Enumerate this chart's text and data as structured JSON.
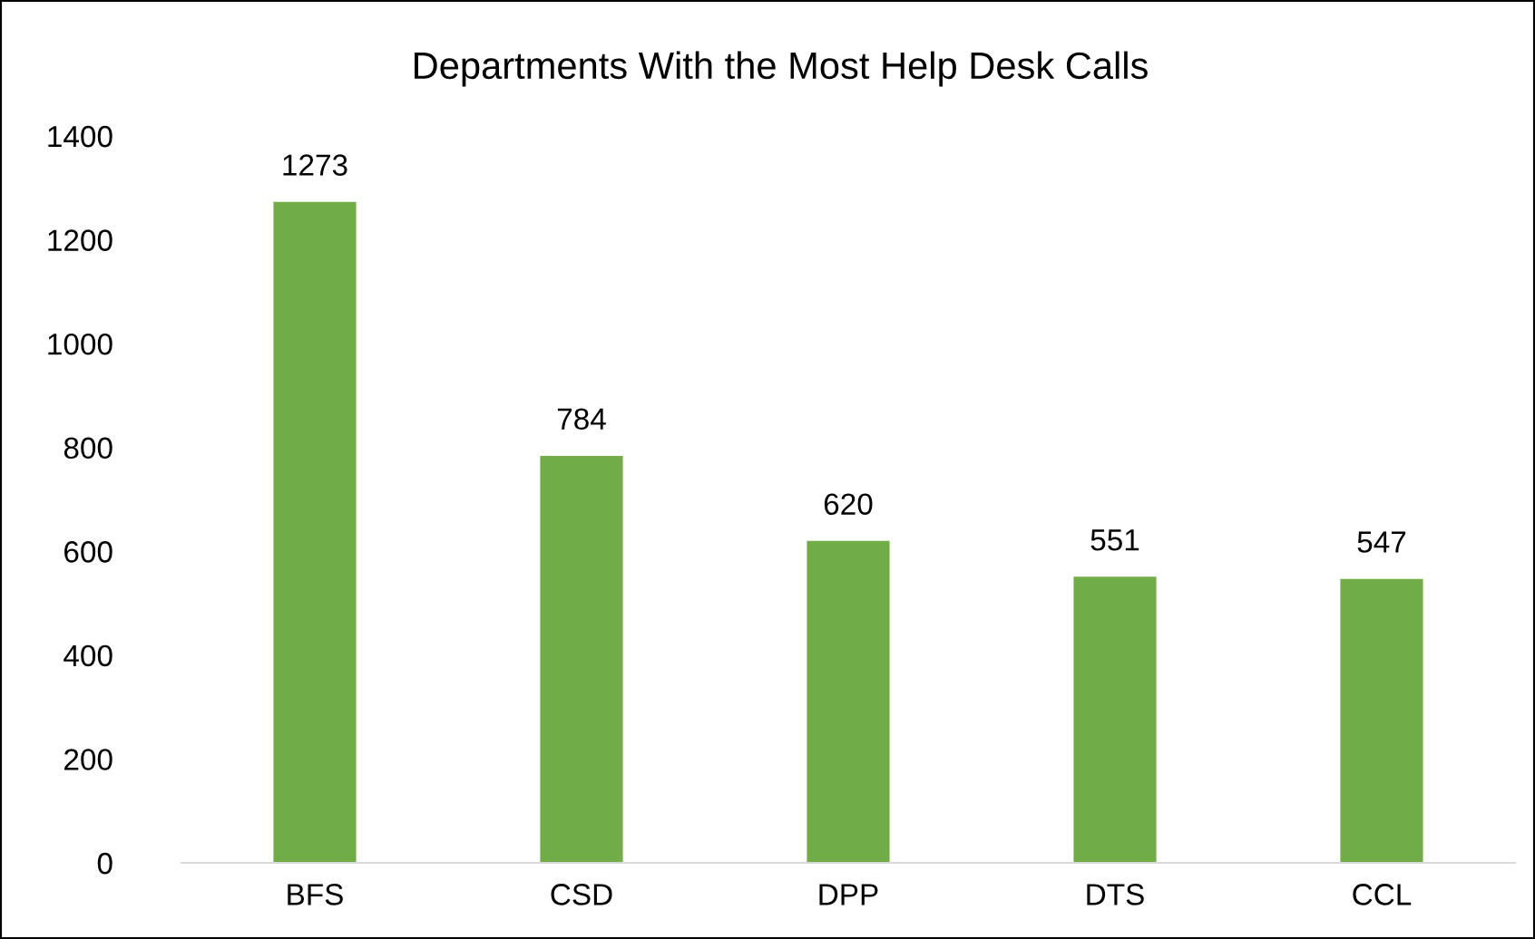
{
  "chart_data": {
    "type": "bar",
    "title": "Departments With the Most Help Desk Calls",
    "categories": [
      "BFS",
      "CSD",
      "DPP",
      "DTS",
      "CCL"
    ],
    "values": [
      1273,
      784,
      620,
      551,
      547
    ],
    "color": "#70ad47",
    "ylim": [
      0,
      1400
    ],
    "yticks": [
      0,
      200,
      400,
      600,
      800,
      1000,
      1200,
      1400
    ],
    "data_labels": true,
    "grid": false,
    "legend": false
  }
}
